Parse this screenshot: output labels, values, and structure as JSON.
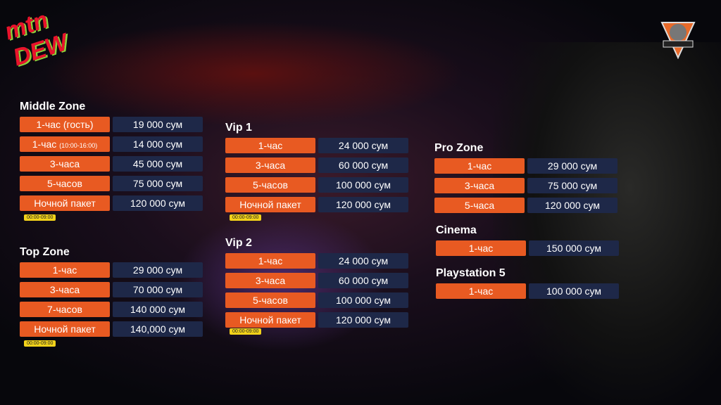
{
  "brand": {
    "logo": "mtn dew",
    "partner_logo": "BE ZONE GAMING"
  },
  "colors": {
    "label_bg": "#e85a22",
    "price_bg": "#1e2848",
    "time_badge": "#f2d21a"
  },
  "middle": {
    "title": "Middle Zone",
    "rows": [
      {
        "label": "1-час (гость)",
        "price": "19 000 сум"
      },
      {
        "label": "1-час",
        "sub": "(10:00-16:00)",
        "price": "14 000 сум"
      },
      {
        "label": "3-часа",
        "price": "45 000 сум"
      },
      {
        "label": "5-часов",
        "price": "75 000 сум"
      },
      {
        "label": "Ночной пакет",
        "price": "120 000 сум"
      }
    ],
    "time": "00:00-09:00"
  },
  "top": {
    "title": "Top Zone",
    "rows": [
      {
        "label": "1-час",
        "price": "29 000 сум"
      },
      {
        "label": "3-часа",
        "price": "70 000 сум"
      },
      {
        "label": "7-часов",
        "price": "140 000 сум"
      },
      {
        "label": "Ночной пакет",
        "price": "140,000 сум"
      }
    ],
    "time": "00:00-09:00"
  },
  "vip1": {
    "title": "Vip 1",
    "rows": [
      {
        "label": "1-час",
        "price": "24 000 сум"
      },
      {
        "label": "3-часа",
        "price": "60 000 сум"
      },
      {
        "label": "5-часов",
        "price": "100 000 сум"
      },
      {
        "label": "Ночной пакет",
        "price": "120 000 сум"
      }
    ],
    "time": "00:00-09:00"
  },
  "vip2": {
    "title": "Vip 2",
    "rows": [
      {
        "label": "1-час",
        "price": "24 000 сум"
      },
      {
        "label": "3-часа",
        "price": "60 000 сум"
      },
      {
        "label": "5-часов",
        "price": "100 000 сум"
      },
      {
        "label": "Ночной пакет",
        "price": "120 000 сум"
      }
    ],
    "time": "00:00-09:00"
  },
  "pro": {
    "title": "Pro Zone",
    "rows": [
      {
        "label": "1-час",
        "price": "29 000 сум"
      },
      {
        "label": "3-часа",
        "price": "75 000 сум"
      },
      {
        "label": "5-часа",
        "price": "120 000 сум"
      }
    ]
  },
  "cinema": {
    "title": "Cinema",
    "rows": [
      {
        "label": "1-час",
        "price": "150 000 сум"
      }
    ]
  },
  "ps5": {
    "title": "Playstation 5",
    "rows": [
      {
        "label": "1-час",
        "price": "100 000 сум"
      }
    ]
  }
}
